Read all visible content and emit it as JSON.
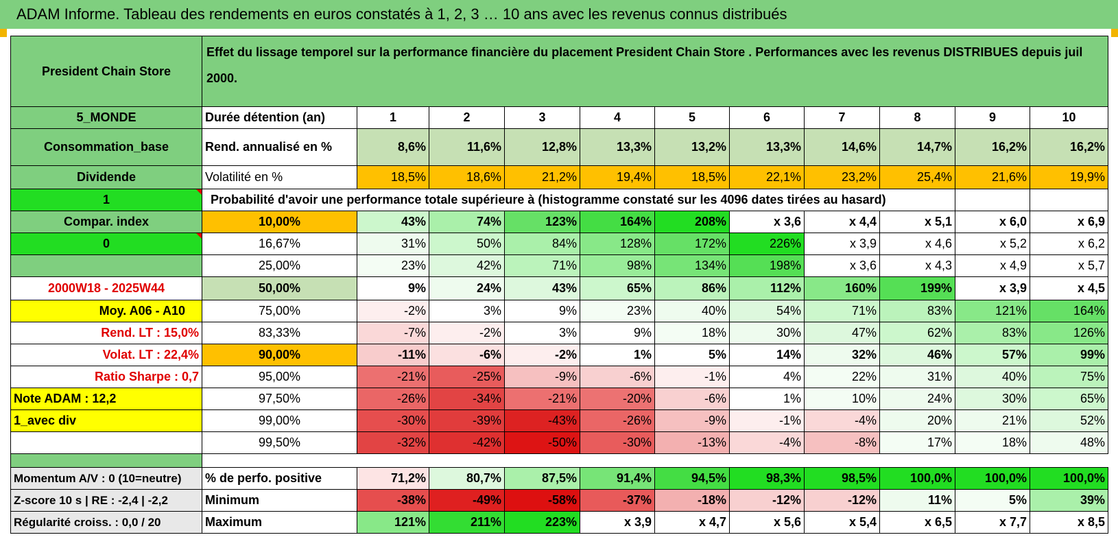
{
  "title": "ADAM Informe. Tableau des rendements en euros constatés à 1, 2, 3 … 10 ans avec les revenus connus distribués",
  "header": {
    "fund_name": "President Chain Store",
    "description": "Effet du lissage temporel sur la performance financière du placement President Chain Store . Performances avec les revenus DISTRIBUES depuis juil 2000."
  },
  "side": {
    "zone": "5_MONDE",
    "sector": "Consommation_base",
    "style": "Dividende",
    "flag1": "1",
    "compar_index": "Compar. index",
    "flag0": "0",
    "period": "2000W18 - 2025W44",
    "moy": "Moy. A06 - A10",
    "rend_lt": "Rend. LT :    15,0%",
    "volat_lt": "Volat. LT :    22,4%",
    "sharpe": "Ratio Sharpe :     0,7",
    "note": "Note ADAM : 12,2",
    "variant": "1_avec div",
    "momentum": "Momentum A/V : 0 (10=neutre)",
    "zscore": "Z-score 10 s | RE : -2,4 | -2,2",
    "regularite": "Régularité croiss. : 0,0 / 20"
  },
  "row_labels": {
    "duration": "Durée détention (an)",
    "rend": "Rend. annualisé en %",
    "vol": "Volatilité en %",
    "prob": "Probabilité d'avoir une performance totale supérieure à (histogramme constaté sur les 4096 dates tirées au hasard)",
    "positive": "% de perfo. positive",
    "min": "Minimum",
    "max": "Maximum"
  },
  "years": [
    "1",
    "2",
    "3",
    "4",
    "5",
    "6",
    "7",
    "8",
    "9",
    "10"
  ],
  "rend": [
    "8,6%",
    "11,6%",
    "12,8%",
    "13,3%",
    "13,2%",
    "13,3%",
    "14,6%",
    "14,7%",
    "16,2%",
    "16,2%"
  ],
  "vol": [
    "18,5%",
    "18,6%",
    "21,2%",
    "19,4%",
    "18,5%",
    "22,1%",
    "23,2%",
    "25,4%",
    "21,6%",
    "19,9%"
  ],
  "percentiles": [
    {
      "p": "10,00%",
      "v": [
        "43%",
        "74%",
        "123%",
        "164%",
        "208%",
        "x 3,6",
        "x 4,4",
        "x 5,1",
        "x 6,0",
        "x 6,9"
      ]
    },
    {
      "p": "16,67%",
      "v": [
        "31%",
        "50%",
        "84%",
        "128%",
        "172%",
        "226%",
        "x 3,9",
        "x 4,6",
        "x 5,2",
        "x 6,2"
      ]
    },
    {
      "p": "25,00%",
      "v": [
        "23%",
        "42%",
        "71%",
        "98%",
        "134%",
        "198%",
        "x 3,6",
        "x 4,3",
        "x 4,9",
        "x 5,7"
      ]
    },
    {
      "p": "50,00%",
      "v": [
        "9%",
        "24%",
        "43%",
        "65%",
        "86%",
        "112%",
        "160%",
        "199%",
        "x 3,9",
        "x 4,5"
      ]
    },
    {
      "p": "75,00%",
      "v": [
        "-2%",
        "3%",
        "9%",
        "23%",
        "40%",
        "54%",
        "71%",
        "83%",
        "121%",
        "164%"
      ]
    },
    {
      "p": "83,33%",
      "v": [
        "-7%",
        "-2%",
        "3%",
        "9%",
        "18%",
        "30%",
        "47%",
        "62%",
        "83%",
        "126%"
      ]
    },
    {
      "p": "90,00%",
      "v": [
        "-11%",
        "-6%",
        "-2%",
        "1%",
        "5%",
        "14%",
        "32%",
        "46%",
        "57%",
        "99%"
      ]
    },
    {
      "p": "95,00%",
      "v": [
        "-21%",
        "-25%",
        "-9%",
        "-6%",
        "-1%",
        "4%",
        "22%",
        "31%",
        "40%",
        "75%"
      ]
    },
    {
      "p": "97,50%",
      "v": [
        "-26%",
        "-34%",
        "-21%",
        "-20%",
        "-6%",
        "1%",
        "10%",
        "24%",
        "30%",
        "65%"
      ]
    },
    {
      "p": "99,00%",
      "v": [
        "-30%",
        "-39%",
        "-43%",
        "-26%",
        "-9%",
        "-1%",
        "-4%",
        "20%",
        "21%",
        "52%"
      ]
    },
    {
      "p": "99,50%",
      "v": [
        "-32%",
        "-42%",
        "-50%",
        "-30%",
        "-13%",
        "-4%",
        "-8%",
        "17%",
        "18%",
        "48%"
      ]
    }
  ],
  "positive": [
    "71,2%",
    "80,7%",
    "87,5%",
    "91,4%",
    "94,5%",
    "98,3%",
    "98,5%",
    "100,0%",
    "100,0%",
    "100,0%"
  ],
  "minimum": [
    "-38%",
    "-49%",
    "-58%",
    "-37%",
    "-18%",
    "-12%",
    "-12%",
    "11%",
    "5%",
    "39%"
  ],
  "maximum": [
    "121%",
    "211%",
    "223%",
    "x 3,9",
    "x 4,7",
    "x 5,6",
    "x 5,4",
    "x 6,5",
    "x 7,7",
    "x 8,5"
  ],
  "colors": {
    "header_green": "#7fcf7f",
    "light_green": "#c6e0b4",
    "bright_green": "#22dd22",
    "orange": "#ffc000",
    "yellow": "#ffff00",
    "red_text": "#e00000"
  }
}
